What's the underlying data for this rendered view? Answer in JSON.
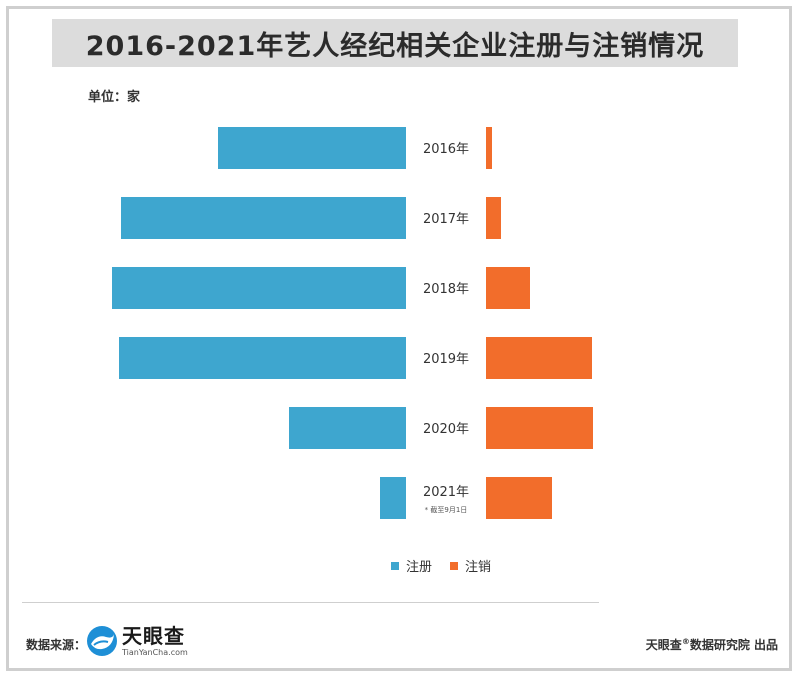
{
  "title": "2016-2021年艺人经纪相关企业注册与注销情况",
  "unit_label": "单位：家",
  "colors": {
    "registered": "#3ea6cf",
    "cancelled": "#f26d2b",
    "title_bg": "#dcdcdc"
  },
  "chart_data": {
    "type": "bar",
    "orientation": "butterfly-horizontal",
    "categories": [
      "2016年",
      "2017年",
      "2018年",
      "2019年",
      "2020年",
      "2021年"
    ],
    "category_notes": [
      "",
      "",
      "",
      "",
      "",
      "* 截至9月1日"
    ],
    "series": [
      {
        "name": "注册",
        "values": [
          1880,
          2850,
          2940,
          2870,
          1170,
          260
        ]
      },
      {
        "name": "注销",
        "values": [
          60,
          150,
          440,
          1060,
          1070,
          660
        ]
      }
    ],
    "legend_position": "bottom-center",
    "grid": false
  },
  "legend": {
    "registered": "注册",
    "cancelled": "注销"
  },
  "footer": {
    "source_label": "数据来源：",
    "logo_cn": "天眼查",
    "logo_en": "TianYanCha.com",
    "credit_brand": "天眼查",
    "credit_mark": "®",
    "credit_rest": "数据研究院 出品"
  }
}
